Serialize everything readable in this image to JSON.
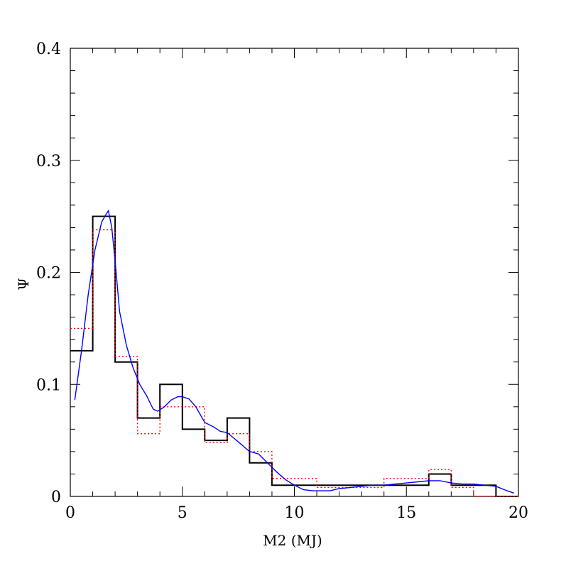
{
  "chart_data": {
    "type": "line",
    "xlabel": "M2 (MJ)",
    "ylabel": "Ψ",
    "xlim": [
      0,
      20
    ],
    "ylim": [
      0,
      0.4
    ],
    "x_ticks": [
      0,
      5,
      10,
      15,
      20
    ],
    "y_ticks": [
      0,
      0.1,
      0.2,
      0.3,
      0.4
    ],
    "x_tick_labels": [
      "0",
      "5",
      "10",
      "15",
      "20"
    ],
    "y_tick_labels": [
      "0",
      "0.1",
      "0.2",
      "0.3",
      "0.4"
    ],
    "bin_edges": [
      0,
      1,
      2,
      3,
      4,
      5,
      6,
      7,
      8,
      9,
      10,
      11,
      12,
      13,
      14,
      15,
      16,
      17,
      18,
      19,
      20
    ],
    "series": [
      {
        "kind": "step",
        "color": "#000000",
        "style": "solid",
        "values": [
          0.13,
          0.25,
          0.12,
          0.07,
          0.1,
          0.06,
          0.05,
          0.07,
          0.03,
          0.01,
          0.01,
          0.01,
          0.01,
          0.01,
          0.01,
          0.01,
          0.02,
          0.01,
          0.01,
          0.0
        ]
      },
      {
        "kind": "step",
        "color": "#ff0000",
        "style": "dotted",
        "values": [
          0.15,
          0.238,
          0.125,
          0.056,
          0.08,
          0.08,
          0.048,
          0.056,
          0.04,
          0.016,
          0.016,
          0.008,
          0.008,
          0.008,
          0.016,
          0.016,
          0.024,
          0.008,
          0.0,
          0.0
        ]
      },
      {
        "kind": "curve",
        "color": "#0000ff",
        "style": "solid",
        "x": [
          0.2,
          0.5,
          0.8,
          1.1,
          1.4,
          1.6,
          1.7,
          1.85,
          2.0,
          2.2,
          2.5,
          2.8,
          3.1,
          3.4,
          3.7,
          3.9,
          4.2,
          4.5,
          4.8,
          5.0,
          5.3,
          5.6,
          6.0,
          6.4,
          6.7,
          7.0,
          7.3,
          7.6,
          8.0,
          8.4,
          8.8,
          9.2,
          9.6,
          10.0,
          10.4,
          10.8,
          11.2,
          11.6,
          12.0,
          12.5,
          13.0,
          13.5,
          14.0,
          14.5,
          15.0,
          15.5,
          16.0,
          16.5,
          17.0,
          17.5,
          18.0,
          18.5,
          19.0,
          19.5,
          19.8
        ],
        "y": [
          0.086,
          0.13,
          0.18,
          0.22,
          0.245,
          0.252,
          0.255,
          0.24,
          0.21,
          0.165,
          0.135,
          0.115,
          0.1,
          0.09,
          0.078,
          0.076,
          0.08,
          0.086,
          0.089,
          0.089,
          0.087,
          0.08,
          0.066,
          0.062,
          0.058,
          0.057,
          0.052,
          0.047,
          0.04,
          0.038,
          0.03,
          0.022,
          0.015,
          0.01,
          0.006,
          0.005,
          0.005,
          0.005,
          0.007,
          0.008,
          0.009,
          0.01,
          0.01,
          0.011,
          0.012,
          0.013,
          0.014,
          0.014,
          0.012,
          0.011,
          0.011,
          0.01,
          0.009,
          0.005,
          0.003
        ]
      }
    ]
  }
}
